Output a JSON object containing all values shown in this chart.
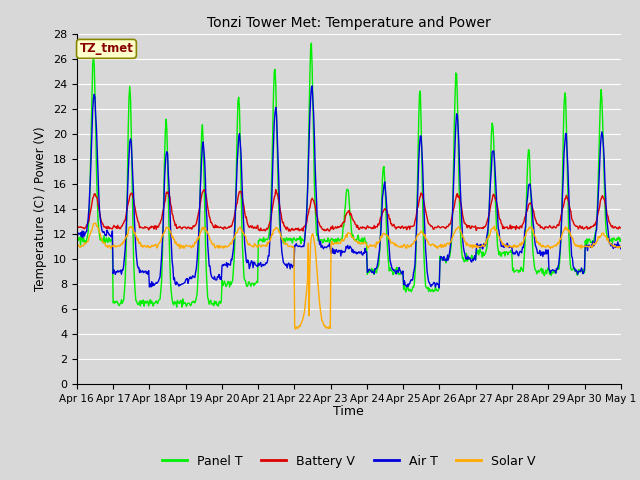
{
  "title": "Tonzi Tower Met: Temperature and Power",
  "xlabel": "Time",
  "ylabel": "Temperature (C) / Power (V)",
  "ylim": [
    0,
    28
  ],
  "yticks": [
    0,
    2,
    4,
    6,
    8,
    10,
    12,
    14,
    16,
    18,
    20,
    22,
    24,
    26,
    28
  ],
  "xtick_labels": [
    "Apr 16",
    "Apr 17",
    "Apr 18",
    "Apr 19",
    "Apr 20",
    "Apr 21",
    "Apr 22",
    "Apr 23",
    "Apr 24",
    "Apr 25",
    "Apr 26",
    "Apr 27",
    "Apr 28",
    "Apr 29",
    "Apr 30",
    "May 1"
  ],
  "bg_color": "#d8d8d8",
  "plot_bg_color": "#d8d8d8",
  "grid_color": "#ffffff",
  "colors": {
    "panel_t": "#00ee00",
    "battery_v": "#dd0000",
    "air_t": "#0000dd",
    "solar_v": "#ffaa00"
  },
  "legend_label_box": "TZ_tmet",
  "legend_label_box_color": "#ffffcc",
  "legend_label_box_text_color": "#880000",
  "legend_entries": [
    "Panel T",
    "Battery V",
    "Air T",
    "Solar V"
  ],
  "figsize": [
    6.4,
    4.8
  ],
  "dpi": 100
}
